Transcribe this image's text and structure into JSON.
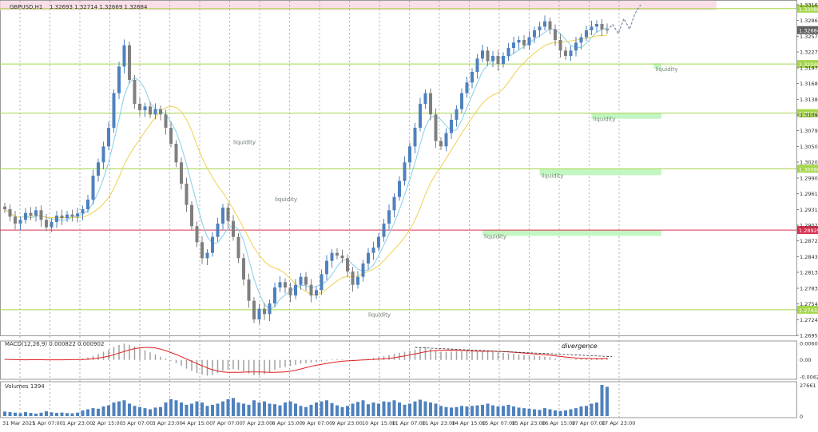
{
  "header": {
    "symbol_info": "GBPUSD,H1",
    "ohlc": "1.32693 1.32714 1.32669 1.32684"
  },
  "macd": {
    "label": "MACD(12,26,9) 0.000822 0.000902",
    "annotation": "divergence",
    "ticks": [
      {
        "v": 0.006088,
        "label": "0.006088"
      },
      {
        "v": 0,
        "label": "0.00"
      },
      {
        "v": -0.006255,
        "label": "-0.006255"
      }
    ]
  },
  "volume": {
    "label": "Volumes 1394",
    "ticks": [
      {
        "v": 27661,
        "label": "27661"
      },
      {
        "v": 0,
        "label": "0"
      }
    ]
  },
  "price_axis": {
    "ticks": [
      "1.33160",
      "1.32865",
      "1.32570",
      "1.32275",
      "1.31975",
      "1.31680",
      "1.31385",
      "1.31090",
      "1.30795",
      "1.30500",
      "1.30205",
      "1.29905",
      "1.29610",
      "1.29315",
      "1.29020",
      "1.28725",
      "1.28430",
      "1.28135",
      "1.27835",
      "1.27540",
      "1.27245",
      "1.26950"
    ],
    "current": "1.32684"
  },
  "levels": [
    {
      "price": 1.33088,
      "label": "1.33088",
      "color": "#a5d64a"
    },
    {
      "price": 1.32048,
      "label": "1.32048",
      "color": "#a5d64a"
    },
    {
      "price": 1.31124,
      "label": "1.31124",
      "color": "#a5d64a"
    },
    {
      "price": 1.3008,
      "label": "1.30080",
      "color": "#a5d64a"
    },
    {
      "price": 1.28929,
      "label": "1.28929",
      "color": "#d9304f"
    },
    {
      "price": 1.27432,
      "label": "1.27432",
      "color": "#a5d64a"
    }
  ],
  "liquidity_zones": [
    {
      "label": "liquidity",
      "label_bar": 125,
      "zone_from_bar": 125,
      "zone_top": 1.3206,
      "zone_bottom": 1.3196
    },
    {
      "label": "liquidity",
      "label_bar": 113,
      "zone_from_bar": 113,
      "zone_top": 1.3112,
      "zone_bottom": 1.3102
    },
    {
      "label": "liquidity",
      "label_bar": 103,
      "zone_from_bar": 103,
      "zone_top": 1.30085,
      "zone_bottom": 1.2996
    },
    {
      "label": "liquidity",
      "label_bar": 92,
      "zone_from_bar": 92,
      "zone_top": 1.2893,
      "zone_bottom": 1.2882
    },
    {
      "label": "liquidity",
      "label_bar": 44,
      "label_price": 1.3054
    },
    {
      "label": "liquidity",
      "label_bar": 52,
      "label_price": 1.2947
    },
    {
      "label": "liquidity",
      "label_bar": 70,
      "label_price": 1.273
    }
  ],
  "time_axis": {
    "labels": [
      "31 Mar 2025",
      "1 Apr 07:00",
      "1 Apr 23:00",
      "2 Apr 15:00",
      "3 Apr 07:00",
      "3 Apr 23:00",
      "4 Apr 15:00",
      "7 Apr 07:00",
      "7 Apr 23:00",
      "8 Apr 15:00",
      "9 Apr 07:00",
      "9 Apr 23:00",
      "10 Apr 15:00",
      "11 Apr 07:00",
      "11 Apr 23:00",
      "14 Apr 15:00",
      "15 Apr 07:00",
      "15 Apr 23:00",
      "16 Apr 15:00",
      "17 Apr 07:00",
      "17 Apr 23:00"
    ]
  },
  "chart_data": {
    "type": "candlestick",
    "symbol": "GBPUSD",
    "timeframe": "H1",
    "ylim": [
      1.2695,
      1.3316
    ],
    "colors": {
      "up": "#4f81bd",
      "down": "#7f7f7f",
      "ma_fast": "#87ceeb",
      "ma_slow": "#f0d050",
      "macd_line": "#e02020",
      "macd_hist": "#a0a0a0",
      "volume": "#4f81bd"
    },
    "close": [
      1.2932,
      1.2918,
      1.2905,
      1.2912,
      1.2925,
      1.292,
      1.293,
      1.2912,
      1.2898,
      1.2908,
      1.292,
      1.2915,
      1.2922,
      1.2918,
      1.2924,
      1.2932,
      1.295,
      1.2995,
      1.302,
      1.305,
      1.3085,
      1.315,
      1.32,
      1.324,
      1.3175,
      1.313,
      1.3118,
      1.3125,
      1.311,
      1.312,
      1.311,
      1.3085,
      1.3055,
      1.302,
      1.298,
      1.294,
      1.29,
      1.287,
      1.284,
      1.285,
      1.288,
      1.2905,
      1.2935,
      1.291,
      1.288,
      1.284,
      1.28,
      1.276,
      1.2725,
      1.2745,
      1.2735,
      1.2755,
      1.2785,
      1.2795,
      1.2785,
      1.277,
      1.279,
      1.2805,
      1.279,
      1.277,
      1.278,
      1.281,
      1.2835,
      1.285,
      1.2845,
      1.284,
      1.2815,
      1.279,
      1.2805,
      1.283,
      1.285,
      1.286,
      1.288,
      1.2905,
      1.293,
      1.2955,
      1.2985,
      1.302,
      1.305,
      1.3085,
      1.313,
      1.315,
      1.311,
      1.306,
      1.305,
      1.3075,
      1.31,
      1.312,
      1.315,
      1.317,
      1.319,
      1.3215,
      1.323,
      1.321,
      1.322,
      1.3205,
      1.322,
      1.3235,
      1.3245,
      1.325,
      1.324,
      1.3255,
      1.3268,
      1.3275,
      1.3285,
      1.327,
      1.325,
      1.323,
      1.322,
      1.323,
      1.3245,
      1.3255,
      1.3268,
      1.3275,
      1.328,
      1.327,
      1.3268
    ],
    "projection": [
      1.3268,
      1.3279,
      1.3262,
      1.329,
      1.327,
      1.33,
      1.3316
    ],
    "macd_values": [
      0.0002,
      0.0001,
      0.0,
      -0.0001,
      0.0,
      0.0001,
      0.0002,
      0.0,
      -0.0001,
      0.0,
      0.0001,
      0.0001,
      0.0002,
      0.0002,
      0.0003,
      0.0005,
      0.0009,
      0.0015,
      0.0022,
      0.003,
      0.0038,
      0.0048,
      0.0055,
      0.006,
      0.0056,
      0.005,
      0.0042,
      0.0035,
      0.0028,
      0.002,
      0.0012,
      0.0005,
      -0.0003,
      -0.0012,
      -0.0022,
      -0.0032,
      -0.004,
      -0.0048,
      -0.0054,
      -0.0058,
      -0.0055,
      -0.0048,
      -0.004,
      -0.0036,
      -0.0034,
      -0.0036,
      -0.0042,
      -0.005,
      -0.0056,
      -0.0058,
      -0.0052,
      -0.0045,
      -0.0036,
      -0.003,
      -0.0026,
      -0.0022,
      -0.0018,
      -0.0014,
      -0.0012,
      -0.001,
      -0.0008,
      -0.0005,
      -0.0002,
      0.0002,
      0.0003,
      0.0002,
      0.0,
      -0.0002,
      -0.0001,
      0.0001,
      0.0004,
      0.0007,
      0.001,
      0.0014,
      0.0018,
      0.0022,
      0.0026,
      0.003,
      0.0034,
      0.0038,
      0.0042,
      0.0046,
      0.004,
      0.0034,
      0.003,
      0.003,
      0.0031,
      0.0032,
      0.0033,
      0.0034,
      0.0033,
      0.0032,
      0.0031,
      0.003,
      0.0029,
      0.0027,
      0.0026,
      0.0024,
      0.0022,
      0.002,
      0.0018,
      0.0017,
      0.0016,
      0.0014,
      0.0012,
      0.001,
      0.0005,
      0.0002,
      0.0001,
      0.0002,
      0.0004,
      0.0005,
      0.0006,
      0.0007,
      0.0008,
      0.0008,
      0.0008
    ],
    "volumes": [
      4000,
      3500,
      3000,
      2500,
      3500,
      2800,
      2200,
      3000,
      4200,
      3300,
      2800,
      3100,
      2600,
      2400,
      3000,
      5000,
      6000,
      7000,
      6500,
      8500,
      9500,
      12000,
      13000,
      14000,
      11000,
      9000,
      8000,
      7000,
      6000,
      7500,
      8000,
      12000,
      15000,
      14000,
      12000,
      10000,
      11000,
      13000,
      12000,
      9000,
      10000,
      11000,
      13000,
      15000,
      16000,
      12000,
      11000,
      10000,
      14000,
      12000,
      13000,
      11000,
      10500,
      9500,
      12000,
      13000,
      11000,
      9000,
      8000,
      10000,
      12000,
      13000,
      14000,
      11500,
      9500,
      8000,
      9000,
      11000,
      12500,
      14000,
      10500,
      12000,
      11000,
      13000,
      12500,
      14000,
      12000,
      10000,
      11000,
      13000,
      14500,
      13000,
      12000,
      11000,
      9000,
      8000,
      7500,
      8000,
      9000,
      8500,
      9000,
      9500,
      10000,
      11000,
      9500,
      8500,
      9000,
      10000,
      8500,
      7500,
      7000,
      6500,
      6000,
      5500,
      7000,
      6000,
      5000,
      4500,
      5000,
      6000,
      7000,
      8500,
      9000,
      11000,
      12000,
      27661,
      26000
    ]
  }
}
